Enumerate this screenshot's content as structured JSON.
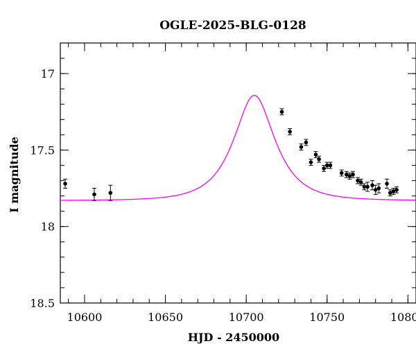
{
  "chart_data": {
    "type": "scatter",
    "title": "OGLE-2025-BLG-0128",
    "xlabel": "HJD - 2450000",
    "ylabel": "I magnitude",
    "xlim": [
      10585,
      10805
    ],
    "ylim": [
      18.5,
      16.8
    ],
    "y_inverted": true,
    "x_major_ticks": [
      10600,
      10650,
      10700,
      10750,
      10800
    ],
    "x_tick_labels": [
      "10600",
      "10650",
      "10700",
      "10750",
      "10800"
    ],
    "y_major_ticks": [
      17.0,
      17.5,
      18.0,
      18.5
    ],
    "y_tick_labels": [
      "17",
      "17.5",
      "18",
      "18.5"
    ],
    "x_minor_step": 10,
    "y_minor_step": 0.1,
    "grid": false,
    "series": [
      {
        "kind": "points",
        "color": "#000000",
        "points": [
          {
            "x": 10588,
            "y": 17.72,
            "err": 0.03
          },
          {
            "x": 10606,
            "y": 17.79,
            "err": 0.04
          },
          {
            "x": 10616,
            "y": 17.78,
            "err": 0.05
          },
          {
            "x": 10722,
            "y": 17.25,
            "err": 0.02
          },
          {
            "x": 10727,
            "y": 17.38,
            "err": 0.02
          },
          {
            "x": 10734,
            "y": 17.48,
            "err": 0.02
          },
          {
            "x": 10737,
            "y": 17.45,
            "err": 0.02
          },
          {
            "x": 10740,
            "y": 17.58,
            "err": 0.02
          },
          {
            "x": 10743,
            "y": 17.53,
            "err": 0.02
          },
          {
            "x": 10745,
            "y": 17.56,
            "err": 0.02
          },
          {
            "x": 10748,
            "y": 17.62,
            "err": 0.02
          },
          {
            "x": 10750,
            "y": 17.6,
            "err": 0.02
          },
          {
            "x": 10752,
            "y": 17.6,
            "err": 0.02
          },
          {
            "x": 10759,
            "y": 17.65,
            "err": 0.02
          },
          {
            "x": 10762,
            "y": 17.66,
            "err": 0.02
          },
          {
            "x": 10764,
            "y": 17.67,
            "err": 0.02
          },
          {
            "x": 10766,
            "y": 17.66,
            "err": 0.02
          },
          {
            "x": 10769,
            "y": 17.7,
            "err": 0.02
          },
          {
            "x": 10771,
            "y": 17.71,
            "err": 0.02
          },
          {
            "x": 10773,
            "y": 17.74,
            "err": 0.02
          },
          {
            "x": 10775,
            "y": 17.74,
            "err": 0.03
          },
          {
            "x": 10778,
            "y": 17.73,
            "err": 0.03
          },
          {
            "x": 10780,
            "y": 17.76,
            "err": 0.03
          },
          {
            "x": 10782,
            "y": 17.75,
            "err": 0.03
          },
          {
            "x": 10787,
            "y": 17.72,
            "err": 0.03
          },
          {
            "x": 10789,
            "y": 17.78,
            "err": 0.02
          },
          {
            "x": 10791,
            "y": 17.77,
            "err": 0.02
          },
          {
            "x": 10793,
            "y": 17.76,
            "err": 0.02
          }
        ]
      },
      {
        "kind": "model-curve",
        "color": "#ff00ff",
        "t0": 10705,
        "tE": 20,
        "u0": 0.6,
        "baseline_mag": 17.83
      }
    ]
  }
}
